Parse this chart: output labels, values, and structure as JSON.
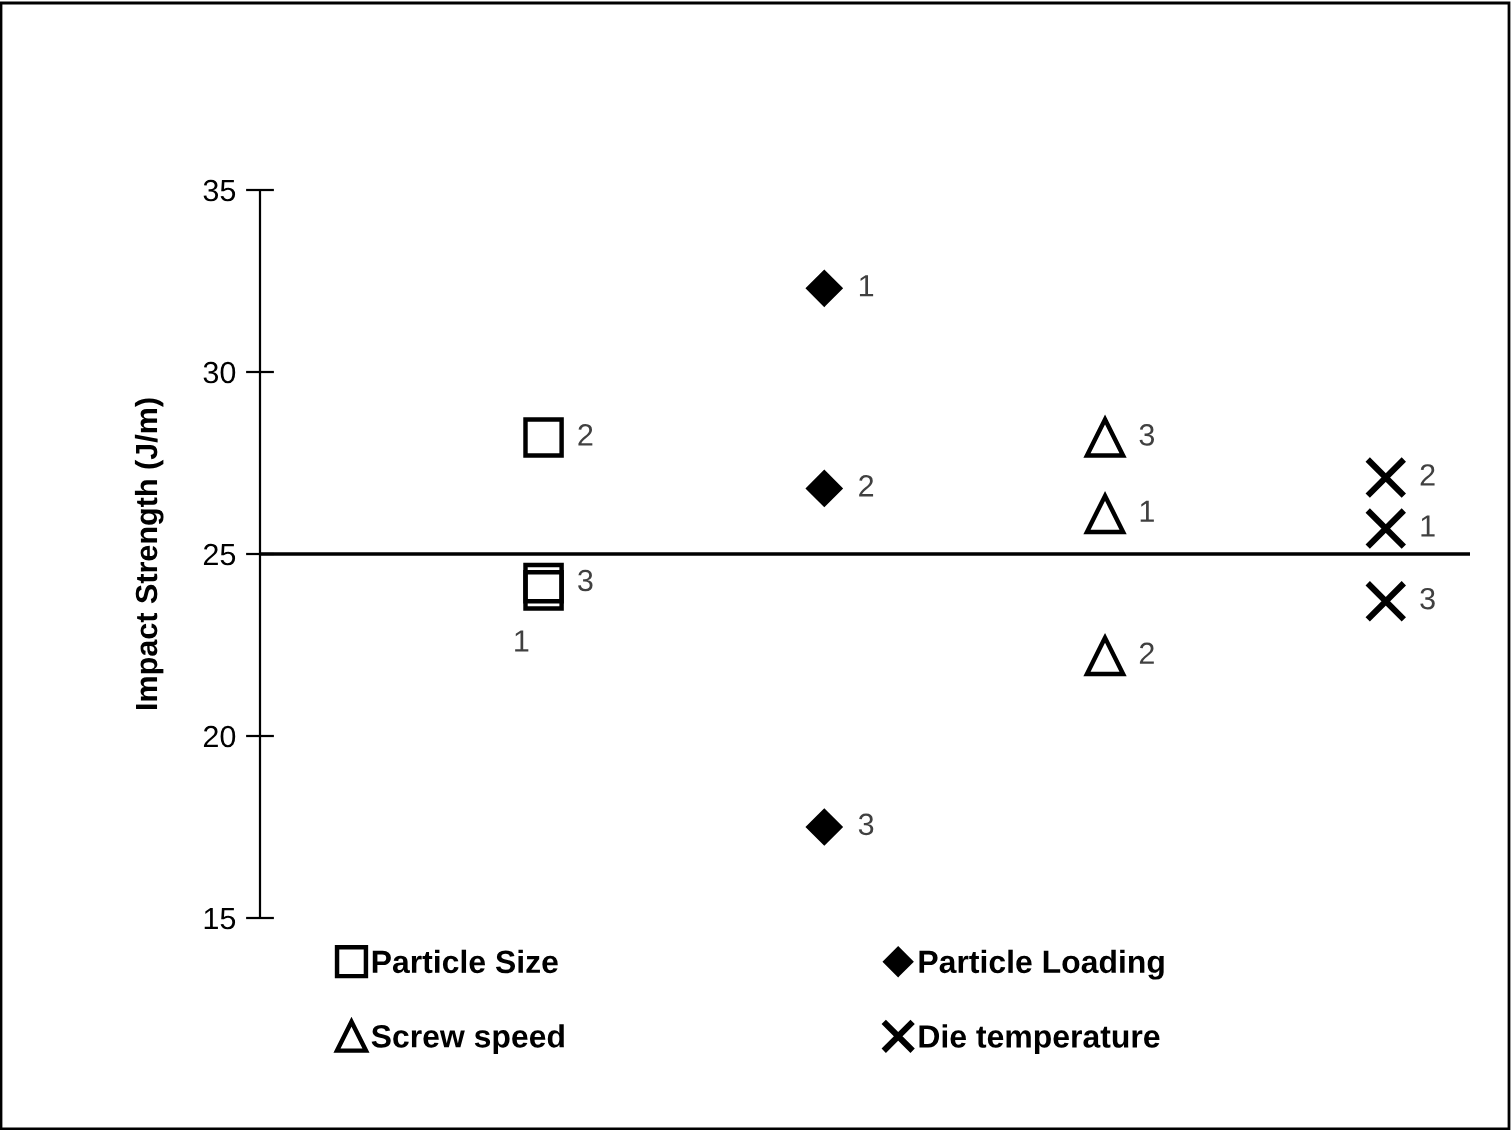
{
  "chart_data": {
    "type": "scatter",
    "ylabel": "Impact Strength (J/m)",
    "categories": [
      null,
      null,
      null,
      null
    ],
    "ylim": [
      15,
      35
    ],
    "yticks": [
      15,
      20,
      25,
      30,
      35
    ],
    "tick_labels": "y",
    "grid": false,
    "legend": "bottom",
    "ref_lines": [
      {
        "axis": "y",
        "value": 25,
        "color": "#000000"
      }
    ],
    "series": [
      {
        "name": "Particle Size",
        "color": "#000000",
        "marker": "square",
        "values": [
          24.0,
          null,
          null,
          null
        ]
      },
      {
        "color": "#000000",
        "marker": "square",
        "values": [
          28.2,
          null,
          null,
          null
        ]
      },
      {
        "color": "#000000",
        "marker": "square",
        "values": [
          24.2,
          null,
          null,
          null
        ]
      },
      {
        "name": "Particle Loading",
        "color": "#000000",
        "marker": "diamond",
        "values": [
          null,
          32.3,
          null,
          null
        ]
      },
      {
        "color": "#000000",
        "marker": "diamond",
        "values": [
          null,
          26.8,
          null,
          null
        ]
      },
      {
        "color": "#000000",
        "marker": "diamond",
        "values": [
          null,
          17.5,
          null,
          null
        ]
      },
      {
        "name": "Screw speed",
        "color": "#000000",
        "marker": "triangle",
        "values": [
          null,
          null,
          26.1,
          null
        ]
      },
      {
        "color": "#000000",
        "marker": "triangle",
        "values": [
          null,
          null,
          22.2,
          null
        ]
      },
      {
        "color": "#000000",
        "marker": "triangle",
        "values": [
          null,
          null,
          28.2,
          null
        ]
      },
      {
        "name": "Die temperature",
        "color": "#000000",
        "marker": "cross",
        "values": [
          null,
          null,
          null,
          25.7
        ]
      },
      {
        "color": "#000000",
        "marker": "cross",
        "values": [
          null,
          null,
          null,
          27.1
        ]
      },
      {
        "color": "#000000",
        "marker": "cross",
        "values": [
          null,
          null,
          null,
          23.7
        ]
      }
    ],
    "annotations": [
      "1",
      "2",
      "3",
      "1",
      "2",
      "3",
      "1",
      "2",
      "3",
      "1",
      "2",
      "3"
    ]
  }
}
